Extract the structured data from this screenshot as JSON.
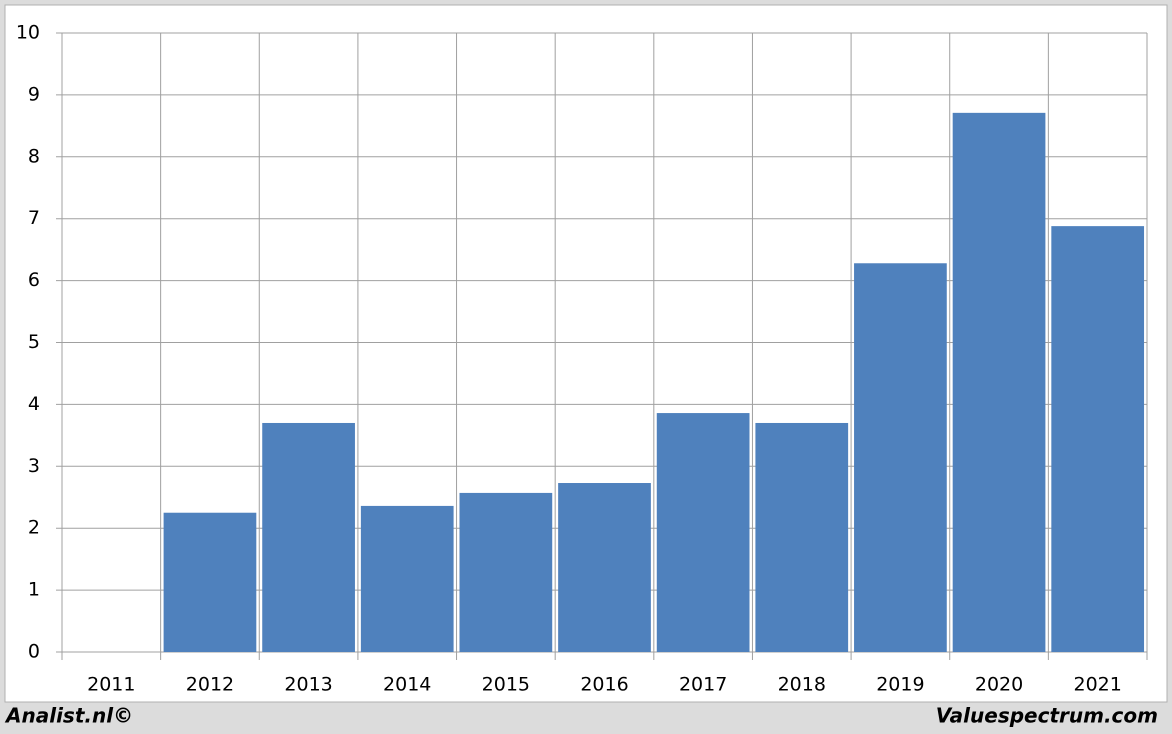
{
  "chart_data": {
    "type": "bar",
    "categories": [
      "2011",
      "2012",
      "2013",
      "2014",
      "2015",
      "2016",
      "2017",
      "2018",
      "2019",
      "2020",
      "2021"
    ],
    "values": [
      null,
      2.25,
      3.7,
      2.36,
      2.57,
      2.73,
      3.86,
      3.7,
      6.28,
      8.71,
      6.88
    ],
    "color": "#4f81bd",
    "ylim": [
      0,
      10
    ],
    "yticks": [
      0,
      1,
      2,
      3,
      4,
      5,
      6,
      7,
      8,
      9,
      10
    ],
    "grid": true
  },
  "footer": {
    "left": "Analist.nl©",
    "right": "Valuespectrum.com"
  }
}
